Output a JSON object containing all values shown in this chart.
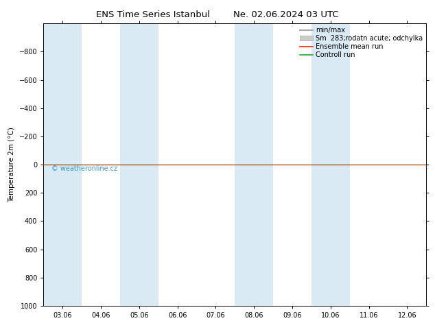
{
  "title": "ENS Time Series Istanbul",
  "date_str": "Ne. 02.06.2024 03 UTC",
  "ylabel": "Temperature 2m (°C)",
  "background_color": "#ffffff",
  "plot_bg_color": "#ffffff",
  "band_color": "#daeaf5",
  "ylim_bottom": 1000,
  "ylim_top": -1000,
  "yticks": [
    -800,
    -600,
    -400,
    -200,
    0,
    200,
    400,
    600,
    800,
    1000
  ],
  "xtick_labels": [
    "03.06",
    "04.06",
    "05.06",
    "06.06",
    "07.06",
    "08.06",
    "09.06",
    "10.06",
    "11.06",
    "12.06"
  ],
  "xtick_positions": [
    0,
    1,
    2,
    3,
    4,
    5,
    6,
    7,
    8,
    9
  ],
  "band_x_starts": [
    -0.5,
    1.5,
    4.5,
    6.5,
    9.5
  ],
  "band_x_ends": [
    0.5,
    2.5,
    5.5,
    7.5,
    10.5
  ],
  "green_line_y": 0,
  "red_line_y": 0,
  "green_line_color": "#22aa22",
  "red_line_color": "#ff2200",
  "watermark": "© weatheronline.cz",
  "watermark_color": "#3399cc",
  "legend_labels": [
    "min/max",
    "Sm  283;rodatn acute; odchylka",
    "Ensemble mean run",
    "Controll run"
  ],
  "title_fontsize": 9.5,
  "axis_fontsize": 7.5,
  "tick_fontsize": 7,
  "legend_fontsize": 7
}
